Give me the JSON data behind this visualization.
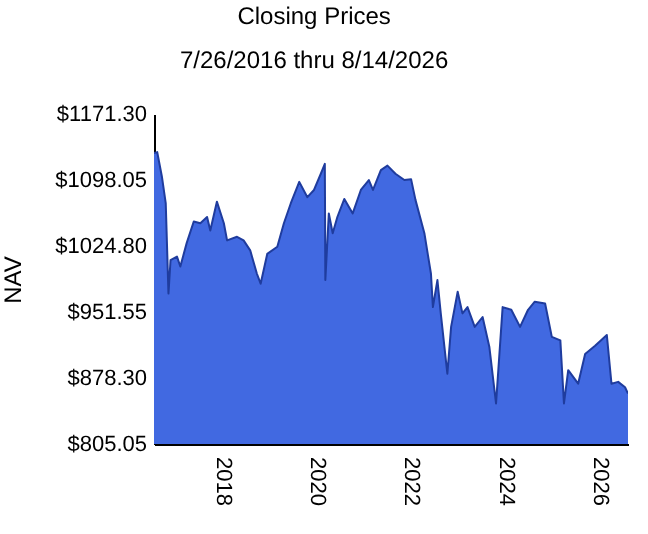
{
  "chart_data": {
    "type": "area",
    "title": "Closing Prices",
    "subtitle": "7/26/2016 thru 8/14/2026",
    "ylabel": "NAV",
    "x": [
      "2016-07-26",
      "2016-08-20",
      "2016-09-25",
      "2016-10-25",
      "2016-11-15",
      "2016-12-01",
      "2017-01-20",
      "2017-02-15",
      "2017-04-05",
      "2017-05-30",
      "2017-07-20",
      "2017-09-10",
      "2017-10-05",
      "2017-11-25",
      "2018-01-18",
      "2018-02-12",
      "2018-04-30",
      "2018-06-20",
      "2018-08-10",
      "2018-10-01",
      "2018-10-30",
      "2018-12-20",
      "2019-03-08",
      "2019-04-28",
      "2019-06-20",
      "2019-08-25",
      "2019-10-27",
      "2019-12-17",
      "2020-02-08",
      "2020-03-10",
      "2020-03-14",
      "2020-04-10",
      "2020-05-10",
      "2020-06-15",
      "2020-08-08",
      "2020-10-12",
      "2020-12-14",
      "2021-02-14",
      "2021-03-18",
      "2021-05-18",
      "2021-07-08",
      "2021-09-08",
      "2021-11-16",
      "2022-01-07",
      "2022-02-10",
      "2022-04-20",
      "2022-06-10",
      "2022-06-25",
      "2022-07-30",
      "2022-08-25",
      "2022-10-15",
      "2022-11-13",
      "2023-01-03",
      "2023-02-09",
      "2023-03-20",
      "2023-05-15",
      "2023-07-15",
      "2023-09-05",
      "2023-10-27",
      "2023-12-17",
      "2024-02-22",
      "2024-04-30",
      "2024-07-01",
      "2024-08-22",
      "2024-11-10",
      "2025-01-01",
      "2025-03-08",
      "2025-04-05",
      "2025-05-08",
      "2025-07-24",
      "2025-09-16",
      "2025-12-02",
      "2026-03-03",
      "2026-04-08",
      "2026-05-30",
      "2026-07-22",
      "2026-08-14"
    ],
    "series": [
      {
        "color": "#4169e1",
        "values": [
          1128,
          1129,
          1102,
          1072,
          972,
          1009,
          1013,
          1002,
          1028,
          1052,
          1050,
          1057,
          1042,
          1074,
          1050,
          1031,
          1035,
          1031,
          1020,
          994,
          983,
          1016,
          1024,
          1050,
          1072,
          1096,
          1079,
          1087,
          1105,
          1116,
          987,
          1061,
          1039,
          1057,
          1077,
          1061,
          1087,
          1098,
          1087,
          1109,
          1114,
          1105,
          1098,
          1099,
          1076,
          1039,
          994,
          957,
          987,
          950,
          883,
          935,
          974,
          950,
          957,
          935,
          946,
          913,
          850,
          957,
          954,
          935,
          954,
          963,
          961,
          924,
          920,
          850,
          887,
          872,
          905,
          914,
          926,
          872,
          874,
          868,
          861
        ]
      }
    ],
    "xlim": [
      "2016-07-26",
      "2026-08-14"
    ],
    "xticks": [
      {
        "value": "2018",
        "label": "2018"
      },
      {
        "value": "2020",
        "label": "2020"
      },
      {
        "value": "2022",
        "label": "2022"
      },
      {
        "value": "2024",
        "label": "2024"
      },
      {
        "value": "2026",
        "label": "2026"
      }
    ],
    "ylim": [
      805.05,
      1171.3
    ],
    "yticks": [
      {
        "value": 805.05,
        "label": "$805.05"
      },
      {
        "value": 878.3,
        "label": "$878.30"
      },
      {
        "value": 951.55,
        "label": "$951.55"
      },
      {
        "value": 1024.8,
        "label": "$1024.80"
      },
      {
        "value": 1098.05,
        "label": "$1098.05"
      },
      {
        "value": 1171.3,
        "label": "$1171.30"
      }
    ],
    "grid": false
  }
}
